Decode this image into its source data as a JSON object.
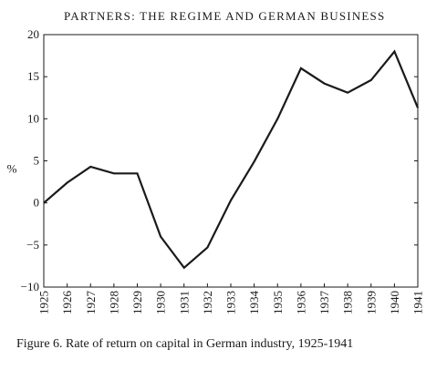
{
  "page_header": "PARTNERS: THE REGIME AND GERMAN BUSINESS",
  "caption": "Figure 6. Rate of return on capital in German industry, 1925-1941",
  "chart_data": {
    "type": "line",
    "title": "",
    "xlabel": "",
    "ylabel": "%",
    "x": [
      "1925",
      "1926",
      "1927",
      "1928",
      "1929",
      "1930",
      "1931",
      "1932",
      "1933",
      "1934",
      "1935",
      "1936",
      "1937",
      "1938",
      "1939",
      "1940",
      "1941"
    ],
    "series": [
      {
        "values": [
          0,
          2.4,
          4.3,
          3.5,
          3.5,
          -4.0,
          -7.7,
          -5.3,
          0.3,
          4.9,
          10.0,
          16.0,
          14.2,
          13.1,
          14.6,
          18.0,
          11.3
        ]
      }
    ],
    "ylim": [
      -10,
      20
    ],
    "yticks": [
      -10,
      -5,
      0,
      5,
      10,
      15,
      20
    ],
    "grid": false,
    "line_color": "#1a1a1a"
  }
}
